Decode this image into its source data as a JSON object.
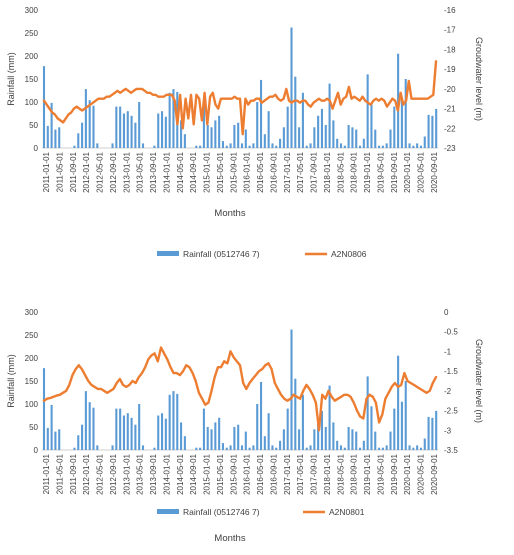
{
  "chart_data": [
    {
      "type": "bar+line",
      "xlabel": "Months",
      "ylabel": "Rainfall (mm)",
      "y2label": "Groudwater level (m)",
      "ylim": [
        0,
        300
      ],
      "y2lim": [
        -23,
        -16
      ],
      "yticks": [
        "0",
        "50",
        "100",
        "150",
        "200",
        "250",
        "300"
      ],
      "y2ticks": [
        "-23",
        "-22",
        "-21",
        "-20",
        "-19",
        "-18",
        "-17",
        "-16"
      ],
      "xticks": [
        "2011-01-01",
        "2011-05-01",
        "2011-09-01",
        "2012-01-01",
        "2012-05-01",
        "2012-09-01",
        "2013-01-01",
        "2013-05-01",
        "2013-09-01",
        "2014-01-01",
        "2014-05-01",
        "2014-09-01",
        "2015-01-01",
        "2015-05-01",
        "2015-09-01",
        "2016-01-01",
        "2016-05-01",
        "2016-09-01",
        "2017-01-01",
        "2017-05-01",
        "2017-09-01",
        "2018-01-01",
        "2018-05-01",
        "2018-09-01",
        "2019-01-01",
        "2019-05-01",
        "2019-09-01",
        "2020-01-01",
        "2020-05-01",
        "2020-09-01"
      ],
      "legend": [
        "Rainfall (0512746 7)",
        "A2N0806"
      ],
      "legend_position": "bottom",
      "rainfall": [
        178,
        48,
        98,
        40,
        45,
        0,
        0,
        0,
        5,
        32,
        55,
        128,
        104,
        92,
        10,
        0,
        0,
        0,
        10,
        90,
        90,
        75,
        80,
        70,
        55,
        100,
        10,
        0,
        0,
        5,
        75,
        80,
        68,
        120,
        128,
        122,
        60,
        30,
        0,
        0,
        5,
        5,
        90,
        50,
        45,
        60,
        70,
        15,
        5,
        10,
        50,
        55,
        10,
        40,
        5,
        10,
        100,
        148,
        30,
        80,
        10,
        5,
        20,
        45,
        90,
        262,
        155,
        45,
        120,
        5,
        10,
        45,
        70,
        85,
        50,
        140,
        60,
        20,
        10,
        5,
        50,
        45,
        40,
        5,
        20,
        160,
        95,
        40,
        5,
        5,
        10,
        40,
        90,
        205,
        105,
        150,
        10,
        5,
        10,
        5,
        25,
        72,
        70,
        85
      ],
      "groundwater": [
        -20.6,
        -20.8,
        -21.0,
        -21.2,
        -21.3,
        -21.5,
        -21.6,
        -21.7,
        -21.5,
        -21.3,
        -21.2,
        -21.0,
        -20.9,
        -21.0,
        -21.1,
        -21.0,
        -20.9,
        -20.8,
        -20.7,
        -20.6,
        -20.5,
        -20.5,
        -20.5,
        -20.4,
        -20.4,
        -20.3,
        -20.2,
        -20.1,
        -20.2,
        -20.1,
        -20.0,
        -20.1,
        -20.2,
        -20.1,
        -20.0,
        -20.0,
        -20.0,
        -20.1,
        -20.2,
        -20.2,
        -20.3,
        -20.3,
        -20.4,
        -20.4,
        -20.4,
        -20.3,
        -20.3,
        -20.3,
        -20.6,
        -21.8,
        -20.3,
        -22.0,
        -20.5,
        -21.5,
        -20.3,
        -21.8,
        -20.3,
        -20.5,
        -21.6,
        -20.2,
        -21.8,
        -20.4,
        -20.2,
        -20.8,
        -21.0,
        -20.5,
        -20.5,
        -20.5,
        -20.5,
        -20.5,
        -20.4,
        -20.5,
        -20.5,
        -22.3,
        -20.5,
        -20.8,
        -20.6,
        -20.6,
        -20.5,
        -20.5,
        -20.7,
        -20.6,
        -20.5,
        -20.4,
        -20.4,
        -20.3,
        -20.5,
        -20.6,
        -20.5,
        -20.0,
        -20.6,
        -20.7,
        -20.6,
        -20.6,
        -20.7,
        -20.6,
        -20.6,
        -20.8,
        -20.9,
        -20.7,
        -20.6,
        -20.5,
        -20.6,
        -20.6,
        -20.5,
        -20.6,
        -21.0,
        -20.6,
        -20.2,
        -20.8,
        -20.5,
        -20.4,
        -19.9,
        -20.5,
        -20.4,
        -20.5,
        -20.6,
        -20.4,
        -20.6,
        -20.7,
        -20.8,
        -20.6,
        -20.5,
        -20.6,
        -20.5,
        -20.6,
        -20.9,
        -20.7,
        -20.5,
        -20.6,
        -21.1,
        -20.2,
        -20.8,
        -20.6,
        -19.6,
        -20.5,
        -20.5,
        -20.5,
        -20.5,
        -20.5,
        -20.5,
        -20.5,
        -20.4,
        -20.3,
        -18.6
      ]
    },
    {
      "type": "bar+line",
      "xlabel": "Months",
      "ylabel": "Rainfall (mm)",
      "y2label": "Groudwater level (m)",
      "ylim": [
        0,
        300
      ],
      "y2lim": [
        -3.5,
        0
      ],
      "yticks": [
        "0",
        "50",
        "100",
        "150",
        "200",
        "250",
        "300"
      ],
      "y2ticks": [
        "-3.5",
        "-3",
        "-2.5",
        "-2",
        "-1.5",
        "-1",
        "-0.5",
        "0"
      ],
      "xticks": [
        "2011-01-01",
        "2011-05-01",
        "2011-09-01",
        "2012-01-01",
        "2012-05-01",
        "2012-09-01",
        "2013-01-01",
        "2013-05-01",
        "2013-09-01",
        "2014-01-01",
        "2014-05-01",
        "2014-09-01",
        "2015-01-01",
        "2015-05-01",
        "2015-09-01",
        "2016-01-01",
        "2016-05-01",
        "2016-09-01",
        "2017-01-01",
        "2017-05-01",
        "2017-09-01",
        "2018-01-01",
        "2018-05-01",
        "2018-09-01",
        "2019-01-01",
        "2019-05-01",
        "2019-09-01",
        "2020-01-01",
        "2020-05-01",
        "2020-09-01"
      ],
      "legend": [
        "Rainfall (0512746 7)",
        "A2N0801"
      ],
      "legend_position": "bottom",
      "rainfall": [
        178,
        48,
        98,
        40,
        45,
        0,
        0,
        0,
        5,
        32,
        55,
        128,
        104,
        92,
        10,
        0,
        0,
        0,
        10,
        90,
        90,
        75,
        80,
        70,
        55,
        100,
        10,
        0,
        0,
        5,
        75,
        80,
        68,
        120,
        128,
        122,
        60,
        30,
        0,
        0,
        5,
        5,
        90,
        50,
        45,
        60,
        70,
        15,
        5,
        10,
        50,
        55,
        10,
        40,
        5,
        10,
        100,
        148,
        30,
        80,
        10,
        5,
        20,
        45,
        90,
        262,
        155,
        45,
        120,
        5,
        10,
        45,
        70,
        85,
        50,
        140,
        60,
        20,
        10,
        5,
        50,
        45,
        40,
        5,
        20,
        160,
        95,
        40,
        5,
        5,
        10,
        40,
        90,
        205,
        105,
        150,
        10,
        5,
        10,
        5,
        25,
        72,
        70,
        85
      ],
      "groundwater": [
        -2.25,
        -2.2,
        -2.18,
        -2.15,
        -2.12,
        -2.1,
        -2.05,
        -2.0,
        -1.85,
        -1.6,
        -1.45,
        -1.35,
        -1.45,
        -1.6,
        -1.75,
        -1.85,
        -1.9,
        -1.95,
        -1.95,
        -2.0,
        -2.05,
        -2.0,
        -1.95,
        -1.8,
        -1.7,
        -1.85,
        -1.9,
        -1.85,
        -1.75,
        -1.8,
        -1.65,
        -1.55,
        -1.4,
        -1.2,
        -1.1,
        -1.05,
        -1.25,
        -0.9,
        -1.05,
        -1.2,
        -1.4,
        -1.55,
        -1.55,
        -1.6,
        -1.5,
        -1.35,
        -1.4,
        -1.55,
        -1.75,
        -2.05,
        -2.2,
        -2.35,
        -2.3,
        -2.0,
        -1.65,
        -1.4,
        -1.4,
        -1.25,
        -1.3,
        -1.0,
        -1.15,
        -1.25,
        -1.35,
        -1.8,
        -1.95,
        -1.8,
        -1.7,
        -1.6,
        -1.5,
        -1.45,
        -1.35,
        -1.3,
        -1.45,
        -1.8,
        -1.95,
        -2.1,
        -2.2,
        -2.25,
        -2.2,
        -2.1,
        -2.15,
        -2.2,
        -2.0,
        -1.85,
        -1.95,
        -2.1,
        -2.3,
        -3.0,
        -2.1,
        -2.2,
        -2.0,
        -2.15,
        -2.25,
        -2.2,
        -2.15,
        -2.1,
        -2.1,
        -2.15,
        -2.3,
        -2.5,
        -2.65,
        -2.7,
        -2.2,
        -2.1,
        -2.15,
        -2.3,
        -2.8,
        -2.6,
        -2.2,
        -2.05,
        -1.9,
        -1.8,
        -1.9,
        -1.85,
        -1.55,
        -1.75,
        -1.8,
        -1.85,
        -1.9,
        -1.95,
        -2.0,
        -2.05,
        -2.0,
        -1.8,
        -1.65
      ]
    }
  ]
}
